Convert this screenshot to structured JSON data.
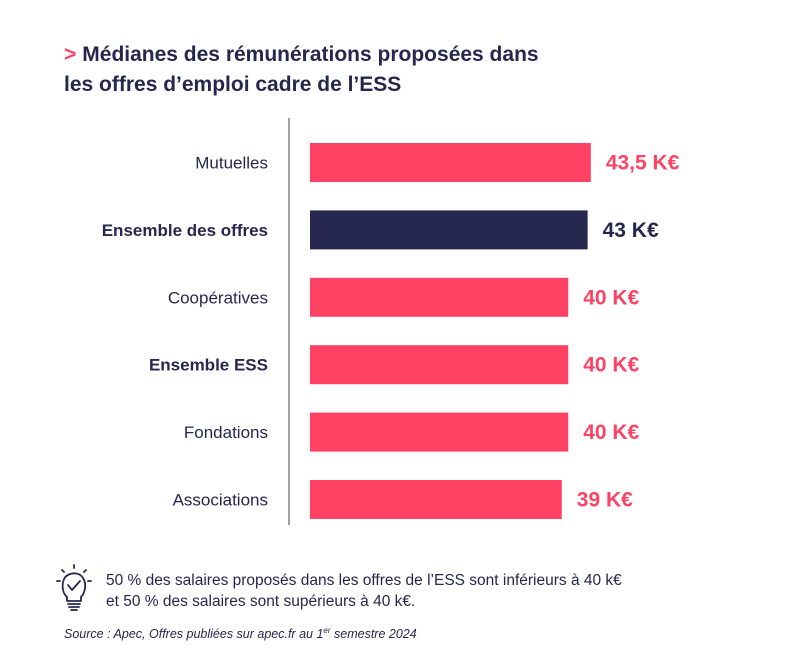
{
  "title": {
    "marker": ">",
    "line1": "Médianes des rémunérations proposées dans",
    "line2": "les offres d’emploi cadre de l’ESS"
  },
  "chart_data": {
    "type": "bar",
    "orientation": "horizontal",
    "categories": [
      "Mutuelles",
      "Ensemble des offres",
      "Coopératives",
      "Ensemble ESS",
      "Fondations",
      "Associations"
    ],
    "values": [
      43.5,
      43,
      40,
      40,
      40,
      39
    ],
    "value_labels": [
      "43,5 K€",
      "43 K€",
      "40 K€",
      "40 K€",
      "40 K€",
      "39 K€"
    ],
    "bold_categories": [
      "Ensemble des offres",
      "Ensemble ESS"
    ],
    "highlight_category": "Ensemble des offres",
    "colors": {
      "bar": "#ff4263",
      "highlight_bar": "#25274f",
      "label_text": "#25274f",
      "axis": "#888888"
    },
    "xlim": [
      0,
      50
    ],
    "grid": false,
    "legend": "none"
  },
  "footnote": {
    "icon": "lightbulb-icon",
    "line1": "50 % des salaires proposés dans les offres de l’ESS sont inférieurs à 40 k€",
    "line2": "et 50 % des salaires sont supérieurs à 40 k€."
  },
  "source": {
    "prefix": "Source : Apec, Offres publiées sur apec.fr au 1",
    "superscript": "er",
    "suffix": " semestre 2024"
  }
}
